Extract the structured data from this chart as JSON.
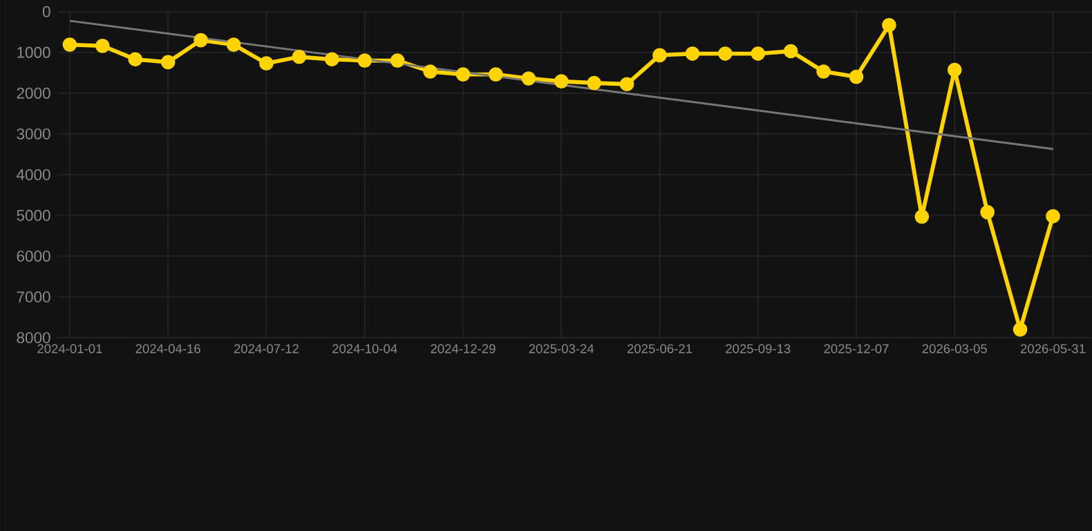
{
  "chart_data": {
    "type": "line",
    "categories": [
      "2024-01-01",
      null,
      null,
      "2024-04-16",
      null,
      null,
      "2024-07-12",
      null,
      null,
      "2024-10-04",
      null,
      null,
      "2024-12-29",
      null,
      null,
      "2025-03-24",
      null,
      null,
      "2025-06-21",
      null,
      null,
      "2025-09-13",
      null,
      null,
      "2025-12-07",
      null,
      null,
      "2026-03-05",
      null,
      null,
      "2026-05-31"
    ],
    "series": [
      {
        "color": "#ffd300",
        "values": [
          810,
          840,
          1170,
          1240,
          700,
          810,
          1270,
          1110,
          1170,
          1200,
          1200,
          1470,
          1540,
          1540,
          1640,
          1710,
          1750,
          1780,
          1070,
          1030,
          1030,
          1030,
          970,
          1470,
          1600,
          330,
          5030,
          1430,
          4920,
          7800,
          5020
        ]
      },
      {
        "color": "#777777",
        "marker": "none",
        "values": [
          225,
          null,
          null,
          null,
          null,
          null,
          null,
          null,
          null,
          null,
          null,
          null,
          null,
          null,
          null,
          null,
          null,
          null,
          null,
          null,
          null,
          null,
          null,
          null,
          null,
          null,
          null,
          null,
          null,
          null,
          3370
        ]
      }
    ],
    "ylim": [
      8000,
      0
    ],
    "yticks": [
      0,
      1000,
      2000,
      3000,
      4000,
      5000,
      6000,
      7000,
      8000
    ],
    "grid": true,
    "marker": "circle",
    "line_style": "solid"
  }
}
